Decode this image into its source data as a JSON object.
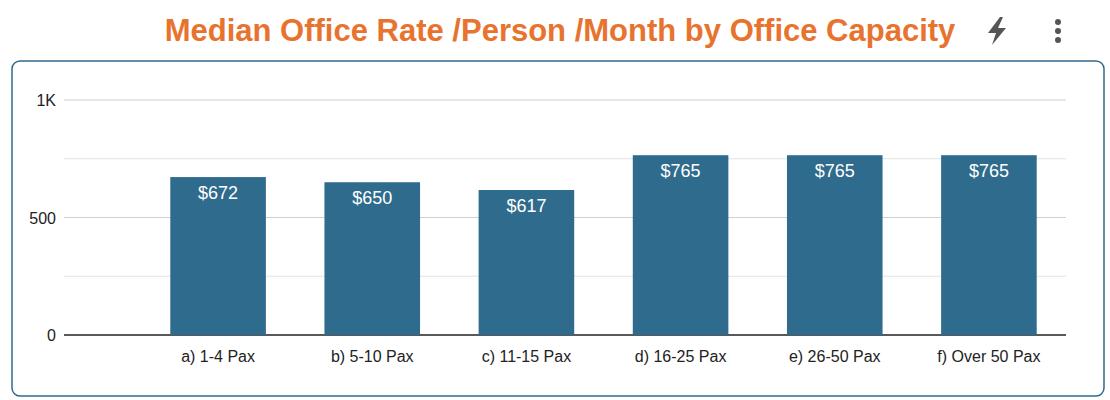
{
  "chart_data": {
    "type": "bar",
    "title": "Median Office Rate /Person /Month by Office Capacity",
    "categories": [
      "a) 1-4 Pax",
      "b) 5-10 Pax",
      "c) 11-15 Pax",
      "d) 16-25 Pax",
      "e) 26-50 Pax",
      "f) Over 50 Pax"
    ],
    "values": [
      672,
      650,
      617,
      765,
      765,
      765
    ],
    "value_labels": [
      "$672",
      "$650",
      "$617",
      "$765",
      "$765",
      "$765"
    ],
    "color": "#2e6b8c",
    "ylim": [
      0,
      1000
    ],
    "yticks": [
      0,
      500,
      {
        "value": 1000,
        "label": "1K"
      }
    ],
    "grid": true,
    "data_labels": true
  }
}
